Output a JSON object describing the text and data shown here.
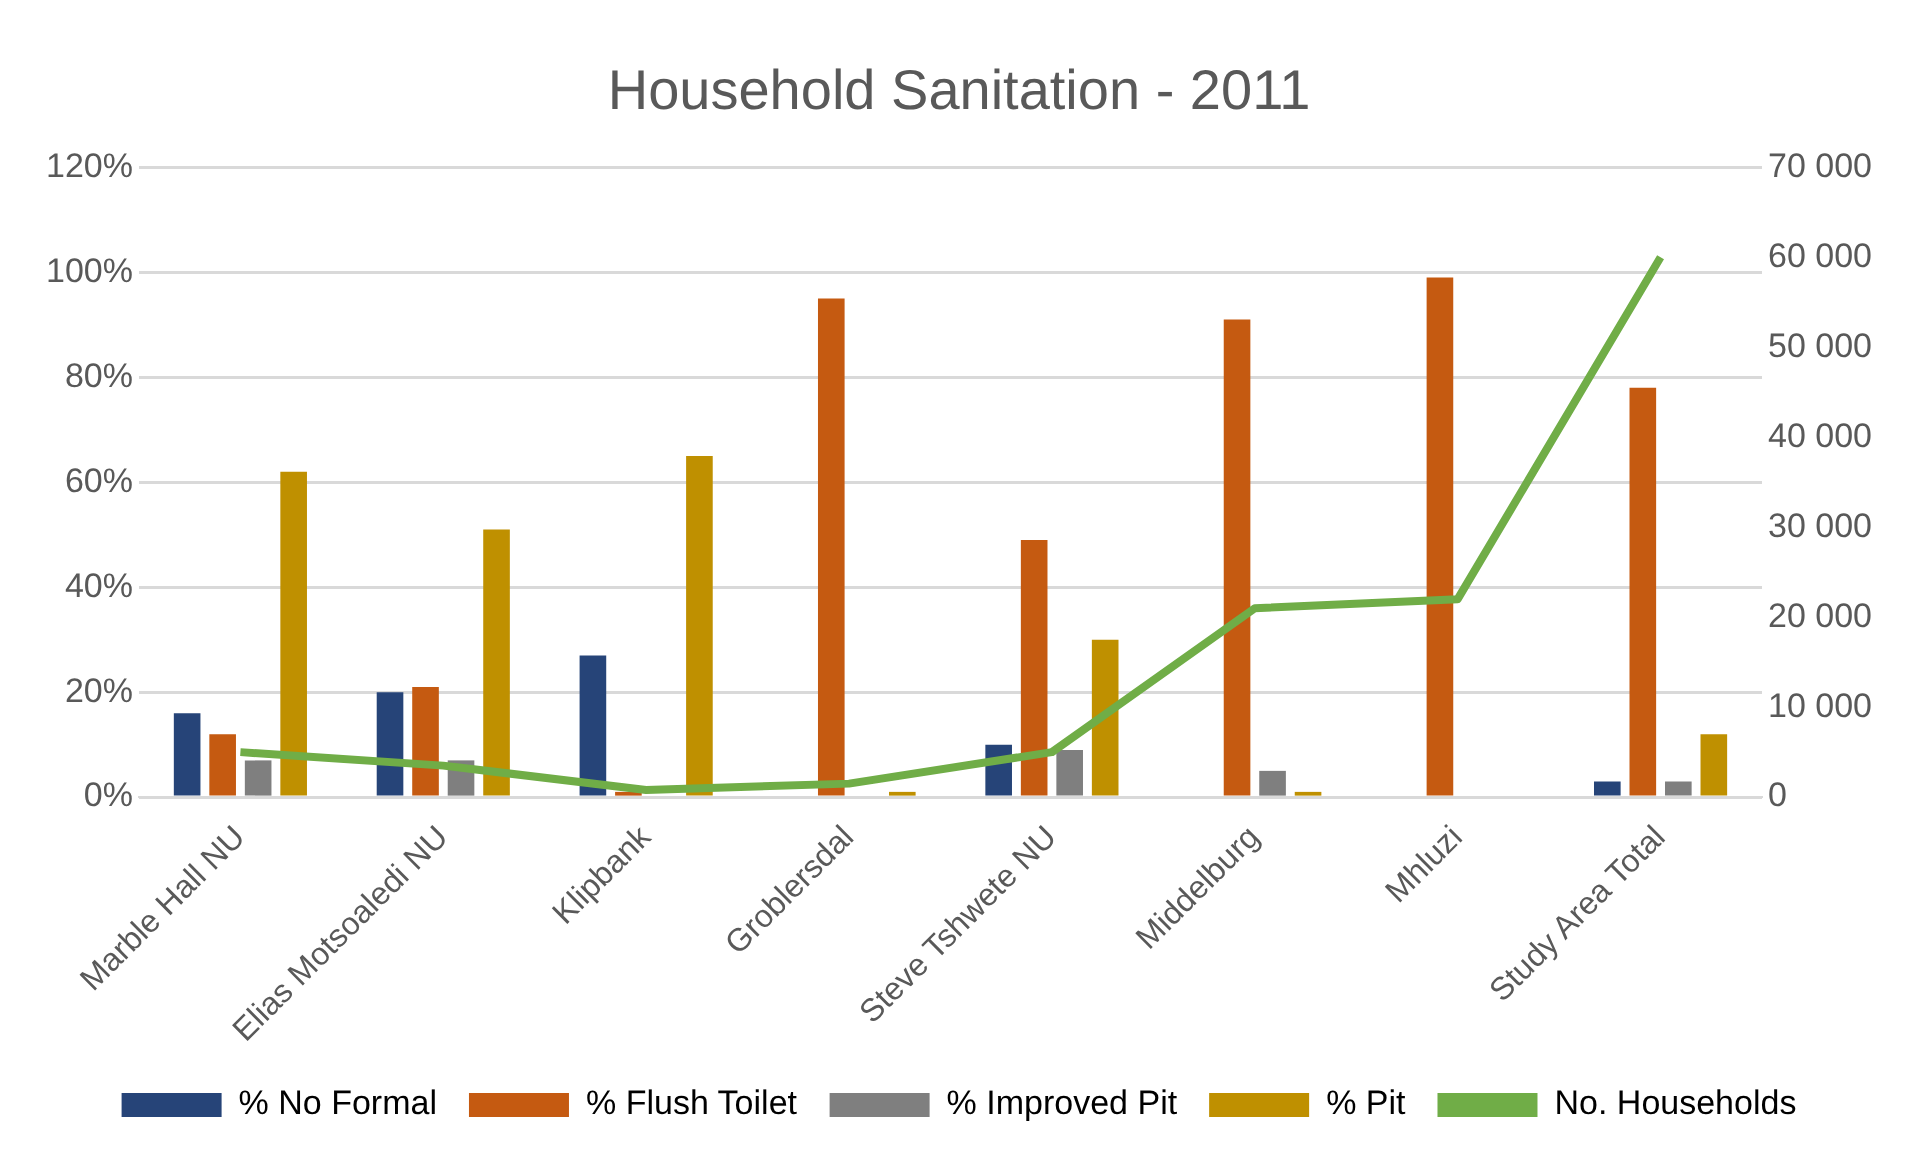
{
  "chart_data": {
    "type": "bar",
    "title": "Household Sanitation - 2011",
    "categories": [
      "Marble Hall NU",
      "Elias Motsoaledi NU",
      "Klipbank",
      "Groblersdal",
      "Steve Tshwete NU",
      "Middelburg",
      "Mhluzi",
      "Study Area Total"
    ],
    "series": [
      {
        "name": "% No Formal",
        "color": "#264478",
        "values": [
          16,
          20,
          27,
          0,
          10,
          0,
          0,
          3
        ]
      },
      {
        "name": "% Flush Toilet",
        "color": "#c55a11",
        "values": [
          12,
          21,
          1,
          95,
          49,
          91,
          99,
          78
        ]
      },
      {
        "name": "% Improved Pit",
        "color": "#7f7f7f",
        "values": [
          7,
          7,
          null,
          0,
          9,
          5,
          0,
          3
        ]
      },
      {
        "name": "% Pit",
        "color": "#bf9000",
        "values": [
          62,
          51,
          65,
          1,
          30,
          1,
          0,
          12
        ]
      },
      {
        "name": "No. Households",
        "type": "line",
        "axis": "y2",
        "color": "#70ad47",
        "values": [
          5000,
          3500,
          800,
          1500,
          5000,
          21000,
          22000,
          60000
        ]
      }
    ],
    "ylim": [
      0,
      120
    ],
    "yticks": [
      {
        "value": 0,
        "label": "0%"
      },
      {
        "value": 20,
        "label": "20%"
      },
      {
        "value": 40,
        "label": "40%"
      },
      {
        "value": 60,
        "label": "60%"
      },
      {
        "value": 80,
        "label": "80%"
      },
      {
        "value": 100,
        "label": "100%"
      },
      {
        "value": 120,
        "label": "120%"
      }
    ],
    "y2lim": [
      0,
      70000
    ],
    "y2ticks": [
      0,
      {
        "value": 10000,
        "label": "10 000"
      },
      {
        "value": 20000,
        "label": "20 000"
      },
      {
        "value": 30000,
        "label": "30 000"
      },
      {
        "value": 40000,
        "label": "40 000"
      },
      {
        "value": 50000,
        "label": "50 000"
      },
      {
        "value": 60000,
        "label": "60 000"
      },
      {
        "value": 70000,
        "label": "70 000"
      }
    ],
    "grid": "y",
    "legend": "bottom",
    "marker": "none"
  }
}
